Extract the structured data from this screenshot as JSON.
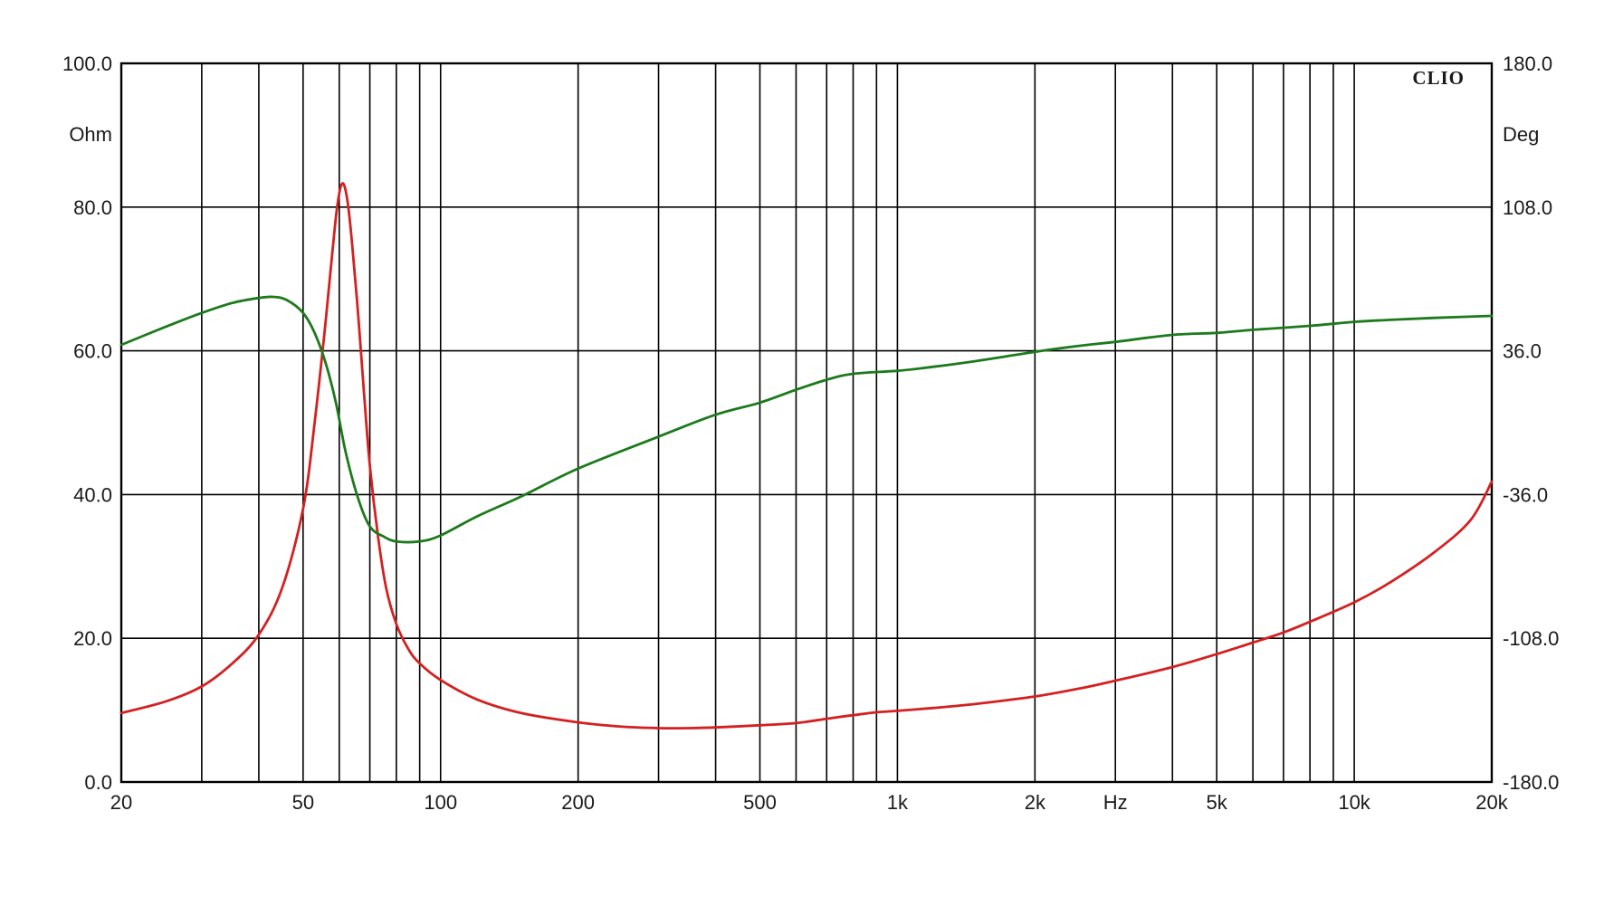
{
  "chart_data": {
    "type": "line",
    "brand": "CLIO",
    "x_scale": "log",
    "xlim": [
      20,
      20000
    ],
    "x_ticks": [
      {
        "value": 20,
        "label": "20"
      },
      {
        "value": 50,
        "label": "50"
      },
      {
        "value": 100,
        "label": "100"
      },
      {
        "value": 200,
        "label": "200"
      },
      {
        "value": 500,
        "label": "500"
      },
      {
        "value": 1000,
        "label": "1k"
      },
      {
        "value": 2000,
        "label": "2k"
      },
      {
        "value": 5000,
        "label": "5k"
      },
      {
        "value": 10000,
        "label": "10k"
      },
      {
        "value": 20000,
        "label": "20k"
      }
    ],
    "x_unit_label": "Hz",
    "x_unit_position": 3000,
    "y_left": {
      "unit": "Ohm",
      "ylim": [
        0,
        100
      ],
      "ticks": [
        {
          "value": 0,
          "label": "0.0"
        },
        {
          "value": 20,
          "label": "20.0"
        },
        {
          "value": 40,
          "label": "40.0"
        },
        {
          "value": 60,
          "label": "60.0"
        },
        {
          "value": 80,
          "label": "80.0"
        },
        {
          "value": 100,
          "label": "100.0"
        }
      ]
    },
    "y_right": {
      "unit": "Deg",
      "ylim": [
        -180,
        180
      ],
      "ticks": [
        {
          "value": -180,
          "label": "-180.0"
        },
        {
          "value": -108,
          "label": "-108.0"
        },
        {
          "value": -36,
          "label": "-36.0"
        },
        {
          "value": 36,
          "label": "36.0"
        },
        {
          "value": 108,
          "label": "108.0"
        },
        {
          "value": 180,
          "label": "180.0"
        }
      ]
    },
    "grid": true,
    "series": [
      {
        "axis": "left",
        "color": "#d42020",
        "points": [
          [
            20,
            9.6
          ],
          [
            25,
            11.2
          ],
          [
            30,
            13.3
          ],
          [
            35,
            16.5
          ],
          [
            40,
            20.5
          ],
          [
            45,
            27.0
          ],
          [
            50,
            38.0
          ],
          [
            53,
            50.0
          ],
          [
            56,
            64.0
          ],
          [
            58,
            74.0
          ],
          [
            59.5,
            80.5
          ],
          [
            61,
            83.3
          ],
          [
            62.5,
            81.0
          ],
          [
            64,
            75.0
          ],
          [
            66,
            65.0
          ],
          [
            68,
            54.0
          ],
          [
            70,
            44.0
          ],
          [
            73,
            34.0
          ],
          [
            76,
            27.0
          ],
          [
            80,
            22.0
          ],
          [
            85,
            18.5
          ],
          [
            90,
            16.5
          ],
          [
            100,
            14.2
          ],
          [
            120,
            11.5
          ],
          [
            150,
            9.6
          ],
          [
            200,
            8.3
          ],
          [
            250,
            7.7
          ],
          [
            300,
            7.5
          ],
          [
            350,
            7.5
          ],
          [
            400,
            7.6
          ],
          [
            500,
            7.9
          ],
          [
            600,
            8.2
          ],
          [
            700,
            8.8
          ],
          [
            800,
            9.3
          ],
          [
            900,
            9.7
          ],
          [
            1000,
            9.9
          ],
          [
            1200,
            10.3
          ],
          [
            1500,
            10.9
          ],
          [
            2000,
            11.9
          ],
          [
            2500,
            13.0
          ],
          [
            3000,
            14.1
          ],
          [
            4000,
            16.0
          ],
          [
            5000,
            17.8
          ],
          [
            6000,
            19.4
          ],
          [
            7000,
            20.8
          ],
          [
            8000,
            22.3
          ],
          [
            10000,
            25.0
          ],
          [
            12000,
            27.8
          ],
          [
            15000,
            32.0
          ],
          [
            18000,
            36.5
          ],
          [
            20000,
            41.8
          ]
        ]
      },
      {
        "axis": "right",
        "color": "#1c7a1c",
        "points": [
          [
            20,
            39.0
          ],
          [
            25,
            48.0
          ],
          [
            30,
            55.0
          ],
          [
            35,
            60.0
          ],
          [
            40,
            62.5
          ],
          [
            43,
            63.0
          ],
          [
            46,
            61.5
          ],
          [
            50,
            55.0
          ],
          [
            53,
            45.0
          ],
          [
            56,
            30.0
          ],
          [
            59,
            10.0
          ],
          [
            62,
            -15.0
          ],
          [
            66,
            -38.0
          ],
          [
            70,
            -52.0
          ],
          [
            75,
            -57.0
          ],
          [
            80,
            -59.5
          ],
          [
            90,
            -59.5
          ],
          [
            100,
            -56.5
          ],
          [
            120,
            -47.0
          ],
          [
            150,
            -37.0
          ],
          [
            200,
            -23.0
          ],
          [
            300,
            -7.0
          ],
          [
            400,
            4.0
          ],
          [
            500,
            10.0
          ],
          [
            600,
            16.5
          ],
          [
            700,
            21.5
          ],
          [
            800,
            24.5
          ],
          [
            1000,
            26.0
          ],
          [
            1200,
            28.0
          ],
          [
            1500,
            31.0
          ],
          [
            2000,
            35.5
          ],
          [
            2500,
            38.5
          ],
          [
            3000,
            40.5
          ],
          [
            4000,
            44.0
          ],
          [
            5000,
            45.0
          ],
          [
            6000,
            46.5
          ],
          [
            8000,
            48.5
          ],
          [
            10000,
            50.5
          ],
          [
            12000,
            51.5
          ],
          [
            15000,
            52.5
          ],
          [
            20000,
            53.5
          ]
        ]
      }
    ]
  }
}
